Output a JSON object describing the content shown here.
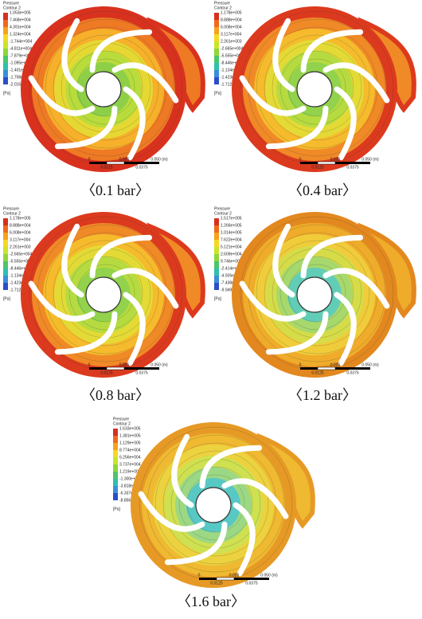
{
  "panels": [
    {
      "caption": "〈0.1 bar〉",
      "legend": {
        "title": "Pressure",
        "subtitle": "Contour 2",
        "labels": [
          "1.053e+005",
          "7.468e+004",
          "4.391e+004",
          "1.324e+004",
          "-1.744e+004",
          "-4.811e+004",
          "-7.879e+004",
          "-1.095e+005",
          "-1.401e+005",
          "-1.708e+005",
          "-2.015e+005"
        ],
        "unit": "[Pa]"
      },
      "scale": [
        "0",
        "0.025",
        "0.050 (m)",
        "0.0125",
        "0.0375"
      ]
    },
    {
      "caption": "〈0.4 bar〉",
      "legend": {
        "title": "Pressure",
        "subtitle": "Contour 2",
        "labels": [
          "1.178e+005",
          "8.888e+004",
          "6.008e+004",
          "3.117e+004",
          "2.261e+003",
          "-2.665e+004",
          "-5.555e+004",
          "-8.446e+004",
          "-1.134e+005",
          "-1.423e+005",
          "-1.712e+005"
        ],
        "unit": "[Pa]"
      },
      "scale": [
        "0",
        "0.025",
        "0.050 (m)",
        "0.0125",
        "0.0375"
      ]
    },
    {
      "caption": "〈0.8 bar〉",
      "legend": {
        "title": "Pressure",
        "subtitle": "Contour 2",
        "labels": [
          "1.178e+005",
          "8.888e+004",
          "6.008e+004",
          "3.117e+004",
          "2.261e+003",
          "-2.665e+004",
          "-5.555e+004",
          "-8.446e+004",
          "-1.134e+005",
          "-1.423e+005",
          "-1.712e+005"
        ],
        "unit": "[Pa]"
      },
      "scale": [
        "0",
        "0.025",
        "0.050 (m)",
        "0.0125",
        "0.0375"
      ]
    },
    {
      "caption": "〈1.2 bar〉",
      "legend": {
        "title": "Pressure",
        "subtitle": "Contour 2",
        "labels": [
          "1.517e+005",
          "1.266e+005",
          "1.014e+005",
          "7.622e+004",
          "5.121e+004",
          "2.609e+004",
          "9.746e+002",
          "-2.414e+004",
          "-4.926e+004",
          "-7.438e+004",
          "-9.949e+004"
        ],
        "unit": "[Pa]"
      },
      "scale": [
        "0",
        "0.025",
        "0.050 (m)",
        "0.0125",
        "0.0375"
      ]
    },
    {
      "caption": "〈1.6 bar〉",
      "legend": {
        "title": "Pressure",
        "subtitle": "Contour 2",
        "labels": [
          "1.633e+005",
          "1.381e+005",
          "1.129e+005",
          "8.774e+004",
          "6.256e+004",
          "3.737e+004",
          "1.219e+004",
          "-1.300e+004",
          "-3.818e+004",
          "-6.337e+004",
          "-8.856e+004"
        ],
        "unit": "[Pa]"
      },
      "scale": [
        "0",
        "0.025",
        "0.050 (m)",
        "0.0125",
        "0.0375"
      ]
    }
  ]
}
